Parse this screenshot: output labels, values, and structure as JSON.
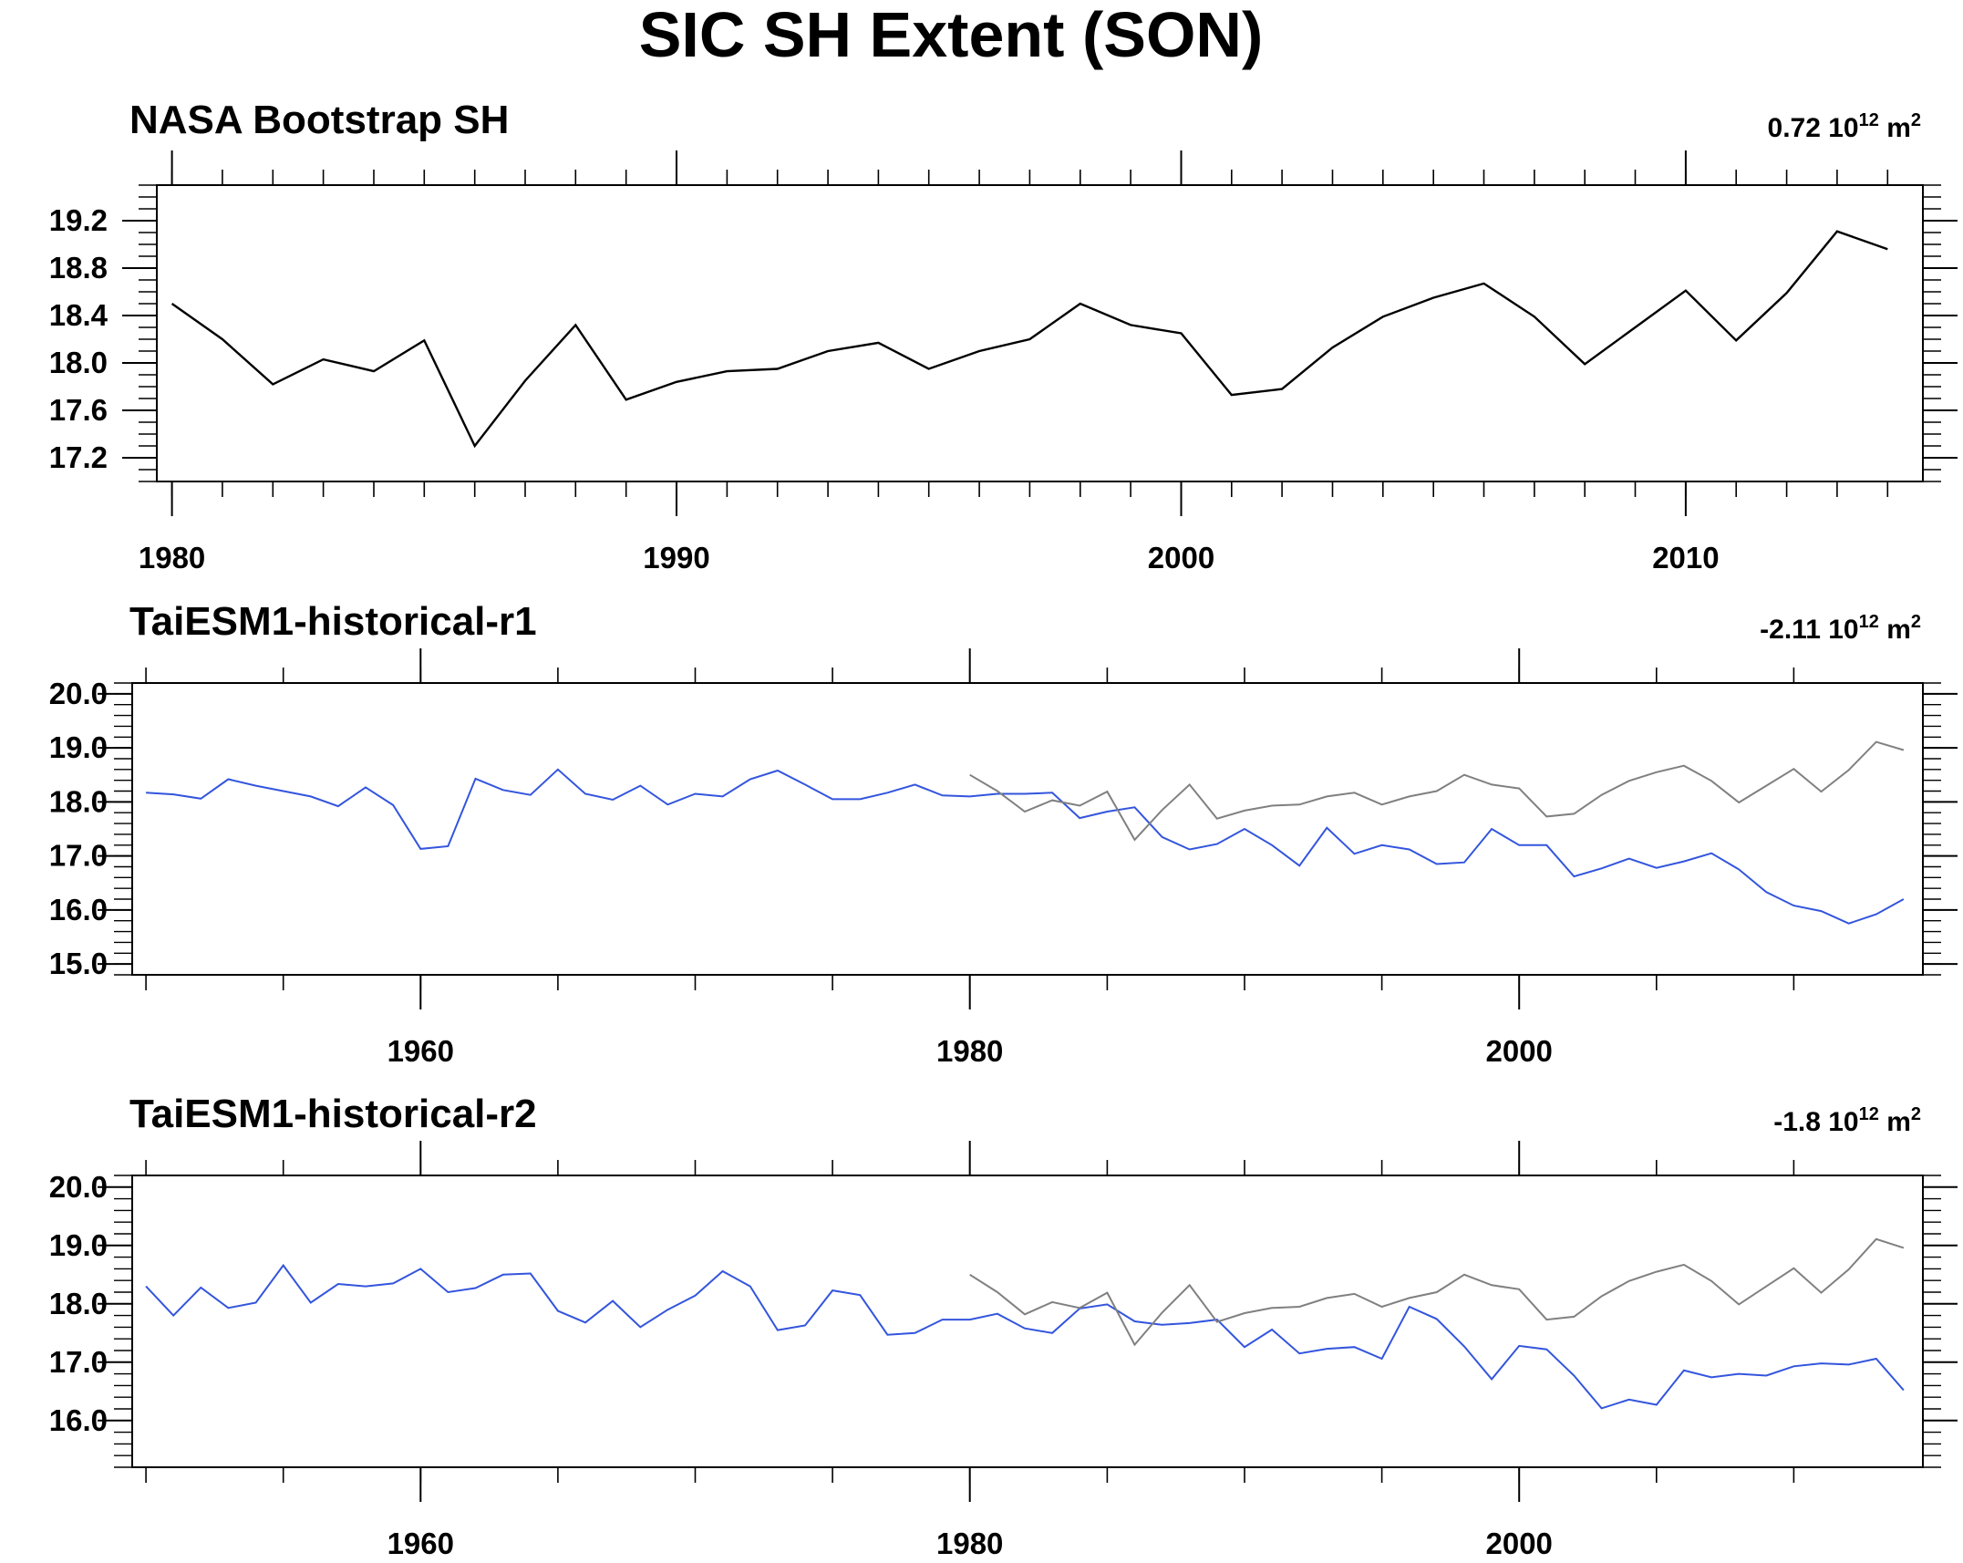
{
  "figure_title": "SIC SH Extent (SON)",
  "colors": {
    "observation": "#000000",
    "observation_overlay": "#808080",
    "model": "#3355dd"
  },
  "chart_data": [
    {
      "type": "line",
      "title": "NASA Bootstrap SH",
      "trend": {
        "value": "0.72",
        "exp": "12",
        "unit_pre": " 10",
        "unit_post": " m",
        "unit_exp": "2"
      },
      "xlim": [
        1979.7,
        2014.7
      ],
      "ylim": [
        17.0,
        19.5
      ],
      "x_ticks": [
        1980,
        1990,
        2000,
        2010
      ],
      "y_ticks": [
        "17.2",
        "17.6",
        "18.0",
        "18.4",
        "18.8",
        "19.2"
      ],
      "series": [
        {
          "role": "observation",
          "x": [
            1980,
            1981,
            1982,
            1983,
            1984,
            1985,
            1986,
            1987,
            1988,
            1989,
            1990,
            1991,
            1992,
            1993,
            1994,
            1995,
            1996,
            1997,
            1998,
            1999,
            2000,
            2001,
            2002,
            2003,
            2004,
            2005,
            2006,
            2007,
            2008,
            2009,
            2010,
            2011,
            2012,
            2013,
            2014
          ],
          "values": [
            18.5,
            18.2,
            17.82,
            18.03,
            17.93,
            18.19,
            17.3,
            17.85,
            18.32,
            17.69,
            17.84,
            17.93,
            17.95,
            18.1,
            18.17,
            17.95,
            18.1,
            18.2,
            18.5,
            18.32,
            18.25,
            17.73,
            17.78,
            18.13,
            18.39,
            18.55,
            18.67,
            18.39,
            17.99,
            18.3,
            18.61,
            18.19,
            18.59,
            19.11,
            18.96
          ]
        }
      ]
    },
    {
      "type": "line",
      "title": "TaiESM1-historical-r1",
      "trend": {
        "value": "-2.11",
        "exp": "12",
        "unit_pre": " 10",
        "unit_post": " m",
        "unit_exp": "2"
      },
      "xlim": [
        1949.5,
        2014.7
      ],
      "ylim": [
        14.8,
        20.2
      ],
      "x_ticks": [
        1960,
        1980,
        2000
      ],
      "y_ticks": [
        "15.0",
        "16.0",
        "17.0",
        "18.0",
        "19.0",
        "20.0"
      ],
      "series": [
        {
          "role": "model",
          "x": [
            1950,
            1951,
            1952,
            1953,
            1954,
            1955,
            1956,
            1957,
            1958,
            1959,
            1960,
            1961,
            1962,
            1963,
            1964,
            1965,
            1966,
            1967,
            1968,
            1969,
            1970,
            1971,
            1972,
            1973,
            1974,
            1975,
            1976,
            1977,
            1978,
            1979,
            1980,
            1981,
            1982,
            1983,
            1984,
            1985,
            1986,
            1987,
            1988,
            1989,
            1990,
            1991,
            1992,
            1993,
            1994,
            1995,
            1996,
            1997,
            1998,
            1999,
            2000,
            2001,
            2002,
            2003,
            2004,
            2005,
            2006,
            2007,
            2008,
            2009,
            2010,
            2011,
            2012,
            2013,
            2014
          ],
          "values": [
            18.17,
            18.14,
            18.06,
            18.42,
            18.3,
            18.2,
            18.1,
            17.92,
            18.27,
            17.94,
            17.13,
            17.18,
            18.43,
            18.22,
            18.13,
            18.6,
            18.15,
            18.04,
            18.3,
            17.95,
            18.15,
            18.1,
            18.42,
            18.58,
            18.32,
            18.05,
            18.05,
            18.17,
            18.32,
            18.12,
            18.1,
            18.15,
            18.15,
            18.17,
            17.7,
            17.82,
            17.9,
            17.35,
            17.12,
            17.22,
            17.5,
            17.2,
            16.82,
            17.52,
            17.04,
            17.2,
            17.12,
            16.85,
            16.88,
            17.5,
            17.2,
            17.2,
            16.62,
            16.77,
            16.95,
            16.78,
            16.9,
            17.05,
            16.75,
            16.33,
            16.08,
            15.98,
            15.75,
            15.92,
            16.2
          ]
        },
        {
          "role": "observation_overlay",
          "x": [
            1980,
            1981,
            1982,
            1983,
            1984,
            1985,
            1986,
            1987,
            1988,
            1989,
            1990,
            1991,
            1992,
            1993,
            1994,
            1995,
            1996,
            1997,
            1998,
            1999,
            2000,
            2001,
            2002,
            2003,
            2004,
            2005,
            2006,
            2007,
            2008,
            2009,
            2010,
            2011,
            2012,
            2013,
            2014
          ],
          "values": [
            18.5,
            18.2,
            17.82,
            18.03,
            17.93,
            18.19,
            17.3,
            17.85,
            18.32,
            17.69,
            17.84,
            17.93,
            17.95,
            18.1,
            18.17,
            17.95,
            18.1,
            18.2,
            18.5,
            18.32,
            18.25,
            17.73,
            17.78,
            18.13,
            18.39,
            18.55,
            18.67,
            18.39,
            17.99,
            18.3,
            18.61,
            18.19,
            18.59,
            19.11,
            18.96
          ]
        }
      ]
    },
    {
      "type": "line",
      "title": "TaiESM1-historical-r2",
      "trend": {
        "value": "-1.8",
        "exp": "12",
        "unit_pre": " 10",
        "unit_post": " m",
        "unit_exp": "2"
      },
      "xlim": [
        1949.5,
        2014.7
      ],
      "ylim": [
        15.2,
        20.2
      ],
      "x_ticks": [
        1960,
        1980,
        2000
      ],
      "y_ticks": [
        "16.0",
        "17.0",
        "18.0",
        "19.0",
        "20.0"
      ],
      "series": [
        {
          "role": "model",
          "x": [
            1950,
            1951,
            1952,
            1953,
            1954,
            1955,
            1956,
            1957,
            1958,
            1959,
            1960,
            1961,
            1962,
            1963,
            1964,
            1965,
            1966,
            1967,
            1968,
            1969,
            1970,
            1971,
            1972,
            1973,
            1974,
            1975,
            1976,
            1977,
            1978,
            1979,
            1980,
            1981,
            1982,
            1983,
            1984,
            1985,
            1986,
            1987,
            1988,
            1989,
            1990,
            1991,
            1992,
            1993,
            1994,
            1995,
            1996,
            1997,
            1998,
            1999,
            2000,
            2001,
            2002,
            2003,
            2004,
            2005,
            2006,
            2007,
            2008,
            2009,
            2010,
            2011,
            2012,
            2013,
            2014
          ],
          "values": [
            18.3,
            17.8,
            18.28,
            17.93,
            18.02,
            18.66,
            18.02,
            18.34,
            18.3,
            18.35,
            18.6,
            18.2,
            18.27,
            18.5,
            18.52,
            17.88,
            17.68,
            18.05,
            17.6,
            17.9,
            18.14,
            18.56,
            18.3,
            17.55,
            17.63,
            18.23,
            18.15,
            17.47,
            17.5,
            17.73,
            17.73,
            17.83,
            17.58,
            17.5,
            17.92,
            17.99,
            17.7,
            17.64,
            17.67,
            17.73,
            17.26,
            17.56,
            17.15,
            17.23,
            17.26,
            17.06,
            17.95,
            17.74,
            17.27,
            16.71,
            17.28,
            17.22,
            16.77,
            16.21,
            16.36,
            16.27,
            16.86,
            16.74,
            16.8,
            16.77,
            16.93,
            16.98,
            16.96,
            17.06,
            16.52
          ]
        },
        {
          "role": "observation_overlay",
          "x": [
            1980,
            1981,
            1982,
            1983,
            1984,
            1985,
            1986,
            1987,
            1988,
            1989,
            1990,
            1991,
            1992,
            1993,
            1994,
            1995,
            1996,
            1997,
            1998,
            1999,
            2000,
            2001,
            2002,
            2003,
            2004,
            2005,
            2006,
            2007,
            2008,
            2009,
            2010,
            2011,
            2012,
            2013,
            2014
          ],
          "values": [
            18.5,
            18.2,
            17.82,
            18.03,
            17.93,
            18.19,
            17.3,
            17.85,
            18.32,
            17.69,
            17.84,
            17.93,
            17.95,
            18.1,
            18.17,
            17.95,
            18.1,
            18.2,
            18.5,
            18.32,
            18.25,
            17.73,
            17.78,
            18.13,
            18.39,
            18.55,
            18.67,
            18.39,
            17.99,
            18.3,
            18.61,
            18.19,
            18.59,
            19.11,
            18.96
          ]
        }
      ]
    }
  ]
}
